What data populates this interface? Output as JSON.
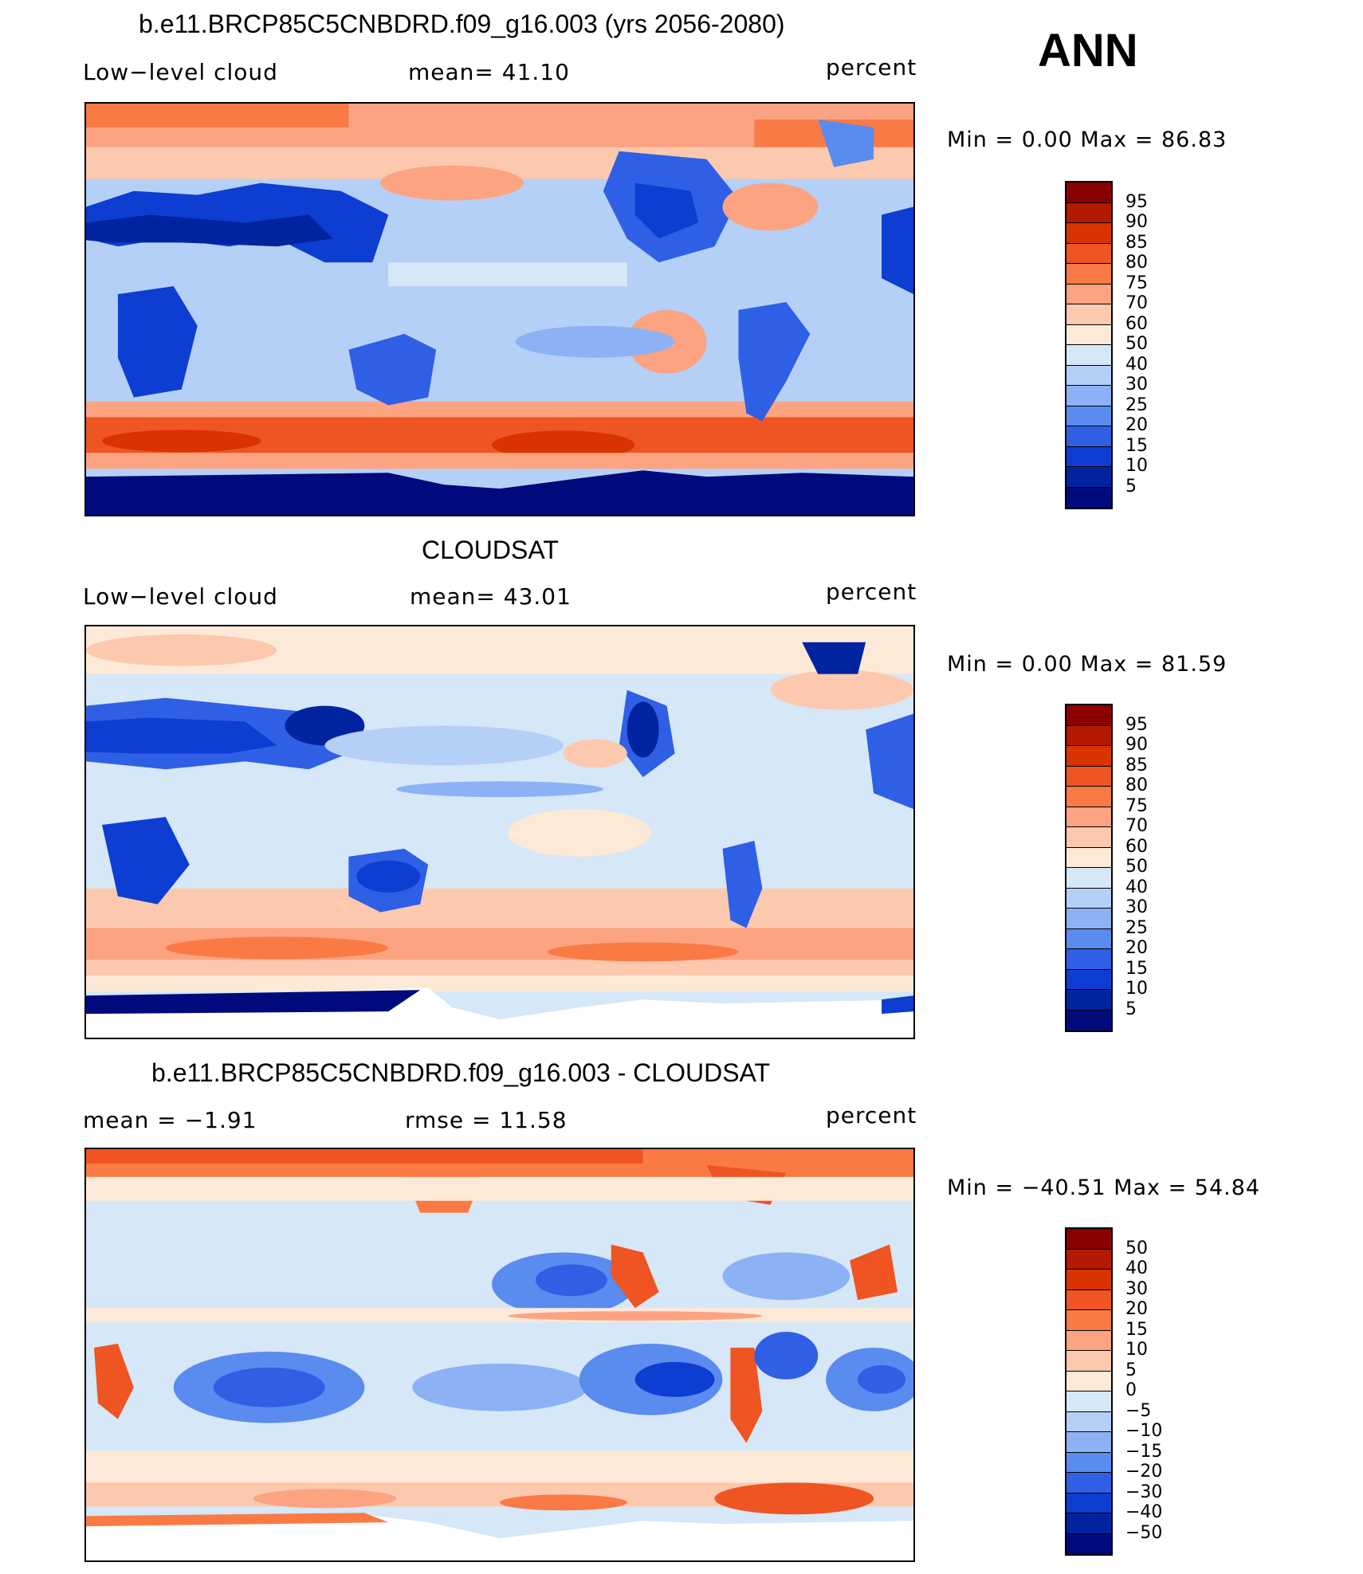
{
  "ann_label": "ANN",
  "panels": [
    {
      "title": "b.e11.BRCP85C5CNBDRD.f09_g16.003 (yrs 2056-2080)",
      "left_label": "Low−level cloud",
      "mid_label": "mean=   41.10",
      "units": "percent",
      "stats": "Min =     0.00 Max =    86.83",
      "colorbar_labels": [
        "95",
        "90",
        "85",
        "80",
        "75",
        "70",
        "60",
        "50",
        "40",
        "30",
        "25",
        "20",
        "15",
        "10",
        "5"
      ],
      "colorbar_colors": [
        "#8b0000",
        "#b31a00",
        "#d93300",
        "#ee5522",
        "#fa7a45",
        "#fca381",
        "#fcc9ae",
        "#fde9d8",
        "#d6e7f7",
        "#b5d0f7",
        "#8cb2f5",
        "#5a8bef",
        "#2f5fe4",
        "#0d3dd1",
        "#00249f",
        "#000a7d"
      ],
      "map_type": "model"
    },
    {
      "title": "CLOUDSAT",
      "left_label": "Low−level cloud",
      "mid_label": "mean=   43.01",
      "units": "percent",
      "stats": "Min =     0.00 Max =    81.59",
      "colorbar_labels": [
        "95",
        "90",
        "85",
        "80",
        "75",
        "70",
        "60",
        "50",
        "40",
        "30",
        "25",
        "20",
        "15",
        "10",
        "5"
      ],
      "colorbar_colors": [
        "#8b0000",
        "#b31a00",
        "#d93300",
        "#ee5522",
        "#fa7a45",
        "#fca381",
        "#fcc9ae",
        "#fde9d8",
        "#d6e7f7",
        "#b5d0f7",
        "#8cb2f5",
        "#5a8bef",
        "#2f5fe4",
        "#0d3dd1",
        "#00249f",
        "#000a7d"
      ],
      "map_type": "obs"
    },
    {
      "title": "b.e11.BRCP85C5CNBDRD.f09_g16.003 - CLOUDSAT",
      "left_label": "mean =   −1.91",
      "mid_label": "rmse =   11.58",
      "units": "percent",
      "stats": "Min = −40.51  Max =    54.84",
      "colorbar_labels": [
        "50",
        "40",
        "30",
        "20",
        "15",
        "10",
        "5",
        "0",
        "−5",
        "−10",
        "−15",
        "−20",
        "−30",
        "−40",
        "−50"
      ],
      "colorbar_colors": [
        "#8b0000",
        "#b31a00",
        "#d93300",
        "#ee5522",
        "#fa7a45",
        "#fca381",
        "#fcc9ae",
        "#fde9d8",
        "#d6e7f7",
        "#b5d0f7",
        "#8cb2f5",
        "#5a8bef",
        "#2f5fe4",
        "#0d3dd1",
        "#00249f",
        "#000a7d"
      ],
      "map_type": "diff"
    }
  ]
}
